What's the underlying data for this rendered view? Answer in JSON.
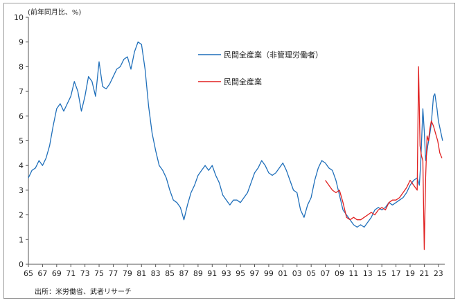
{
  "chart_data": {
    "type": "line",
    "title": "",
    "unit_label": "(前年同月比、%)",
    "xlabel": "",
    "ylabel": "",
    "ylim": [
      0,
      10
    ],
    "xlim": [
      1965,
      2023.9
    ],
    "grid": false,
    "legend_placement": "top-right",
    "x_tick_labels": [
      "65",
      "67",
      "69",
      "71",
      "73",
      "75",
      "77",
      "79",
      "81",
      "83",
      "85",
      "87",
      "89",
      "91",
      "93",
      "95",
      "97",
      "99",
      "01",
      "03",
      "05",
      "07",
      "09",
      "11",
      "13",
      "15",
      "17",
      "19",
      "21",
      "23"
    ],
    "y_tick_labels": [
      "0",
      "1",
      "2",
      "3",
      "4",
      "5",
      "6",
      "7",
      "8",
      "9",
      "10"
    ],
    "series": [
      {
        "name": "民間全産業（非管理労働者）",
        "color": "#1f6fba",
        "x": [
          1965.0,
          1965.5,
          1966.0,
          1966.5,
          1967.0,
          1967.5,
          1968.0,
          1968.5,
          1969.0,
          1969.5,
          1970.0,
          1970.5,
          1971.0,
          1971.5,
          1972.0,
          1972.5,
          1973.0,
          1973.5,
          1974.0,
          1974.5,
          1975.0,
          1975.5,
          1976.0,
          1976.5,
          1977.0,
          1977.5,
          1978.0,
          1978.5,
          1979.0,
          1979.5,
          1980.0,
          1980.5,
          1981.0,
          1981.5,
          1982.0,
          1982.5,
          1983.0,
          1983.5,
          1984.0,
          1984.5,
          1985.0,
          1985.5,
          1986.0,
          1986.5,
          1987.0,
          1987.5,
          1988.0,
          1988.5,
          1989.0,
          1989.5,
          1990.0,
          1990.5,
          1991.0,
          1991.5,
          1992.0,
          1992.5,
          1993.0,
          1993.5,
          1994.0,
          1994.5,
          1995.0,
          1995.5,
          1996.0,
          1996.5,
          1997.0,
          1997.5,
          1998.0,
          1998.5,
          1999.0,
          1999.5,
          2000.0,
          2000.5,
          2001.0,
          2001.5,
          2002.0,
          2002.5,
          2003.0,
          2003.5,
          2004.0,
          2004.5,
          2005.0,
          2005.5,
          2006.0,
          2006.5,
          2007.0,
          2007.5,
          2008.0,
          2008.5,
          2009.0,
          2009.5,
          2010.0,
          2010.5,
          2011.0,
          2011.5,
          2012.0,
          2012.5,
          2013.0,
          2013.5,
          2014.0,
          2014.5,
          2015.0,
          2015.5,
          2016.0,
          2016.5,
          2017.0,
          2017.5,
          2018.0,
          2018.5,
          2019.0,
          2019.5,
          2020.0,
          2020.3,
          2020.5,
          2020.8,
          2021.0,
          2021.2,
          2021.5,
          2021.8,
          2022.0,
          2022.3,
          2022.5,
          2022.8,
          2023.0,
          2023.3,
          2023.6
        ],
        "y": [
          3.5,
          3.8,
          3.9,
          4.2,
          4.0,
          4.3,
          4.8,
          5.6,
          6.3,
          6.5,
          6.2,
          6.5,
          6.8,
          7.4,
          7.0,
          6.2,
          6.8,
          7.6,
          7.4,
          6.8,
          8.2,
          7.2,
          7.1,
          7.3,
          7.6,
          7.9,
          8.0,
          8.3,
          8.4,
          7.9,
          8.6,
          9.0,
          8.9,
          7.9,
          6.4,
          5.3,
          4.6,
          4.0,
          3.8,
          3.5,
          3.0,
          2.6,
          2.5,
          2.3,
          1.8,
          2.4,
          2.9,
          3.2,
          3.6,
          3.8,
          4.0,
          3.8,
          4.0,
          3.6,
          3.3,
          2.8,
          2.6,
          2.4,
          2.6,
          2.6,
          2.5,
          2.7,
          2.9,
          3.3,
          3.7,
          3.9,
          4.2,
          4.0,
          3.7,
          3.6,
          3.7,
          3.9,
          4.1,
          3.8,
          3.4,
          3.0,
          2.9,
          2.2,
          1.9,
          2.4,
          2.7,
          3.4,
          3.9,
          4.2,
          4.1,
          3.9,
          3.8,
          3.4,
          2.8,
          2.2,
          2.0,
          1.8,
          1.6,
          1.5,
          1.6,
          1.5,
          1.7,
          1.9,
          2.2,
          2.3,
          2.2,
          2.3,
          2.5,
          2.4,
          2.5,
          2.6,
          2.7,
          2.9,
          3.2,
          3.4,
          3.5,
          3.2,
          4.1,
          6.3,
          5.4,
          4.2,
          4.8,
          5.3,
          5.7,
          6.8,
          6.9,
          6.3,
          5.8,
          5.4,
          5.0
        ]
      },
      {
        "name": "民間全産業",
        "color": "#e02020",
        "x": [
          2007.0,
          2007.5,
          2008.0,
          2008.5,
          2009.0,
          2009.5,
          2010.0,
          2010.5,
          2011.0,
          2011.5,
          2012.0,
          2012.5,
          2013.0,
          2013.5,
          2014.0,
          2014.5,
          2015.0,
          2015.5,
          2016.0,
          2016.5,
          2017.0,
          2017.5,
          2018.0,
          2018.5,
          2019.0,
          2019.5,
          2020.0,
          2020.2,
          2020.4,
          2020.6,
          2020.8,
          2021.0,
          2021.2,
          2021.4,
          2021.6,
          2021.8,
          2022.0,
          2022.3,
          2022.6,
          2022.9,
          2023.2,
          2023.5
        ],
        "y": [
          3.4,
          3.2,
          3.0,
          2.9,
          3.0,
          2.5,
          1.9,
          1.8,
          1.9,
          1.8,
          1.8,
          1.9,
          2.0,
          2.1,
          2.0,
          2.2,
          2.3,
          2.2,
          2.5,
          2.6,
          2.6,
          2.7,
          2.9,
          3.1,
          3.4,
          3.2,
          3.0,
          8.0,
          4.8,
          4.4,
          4.2,
          0.6,
          3.5,
          5.2,
          5.0,
          5.5,
          5.8,
          5.6,
          5.3,
          5.0,
          4.5,
          4.3
        ]
      }
    ]
  },
  "source_note": "出所：米労働省、武者リサーチ"
}
